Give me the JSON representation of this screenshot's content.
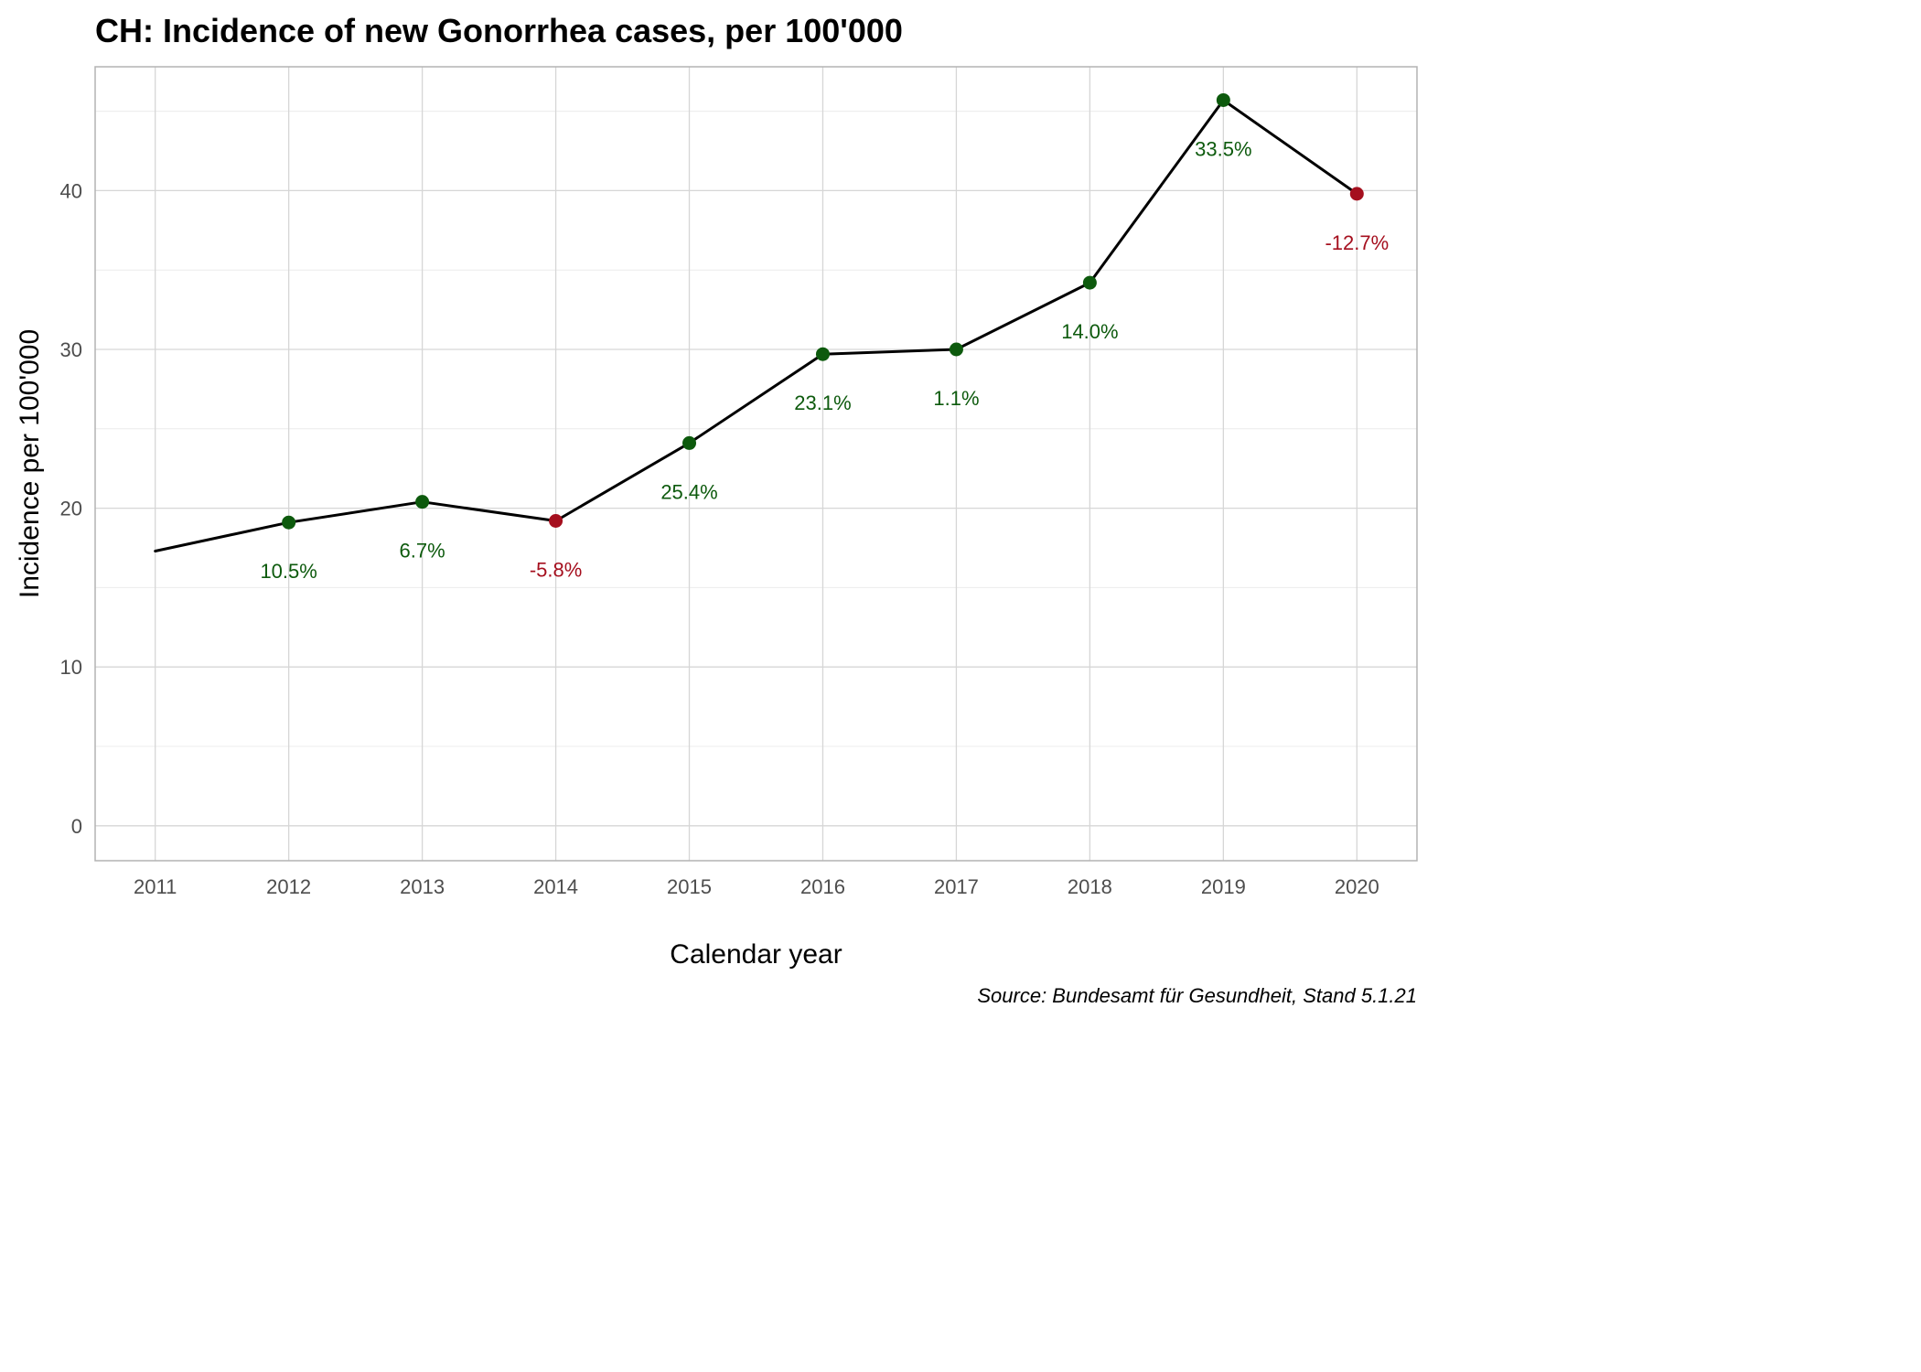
{
  "chart_data": {
    "type": "line",
    "title": "CH: Incidence of new Gonorrhea cases, per 100'000",
    "xlabel": "Calendar year",
    "ylabel": "Incidence per 100'000",
    "caption": "Source: Bundesamt für Gesundheit, Stand 5.1.21",
    "x": [
      2011,
      2012,
      2013,
      2014,
      2015,
      2016,
      2017,
      2018,
      2019,
      2020
    ],
    "x_tick_labels": [
      "2011",
      "2012",
      "2013",
      "2014",
      "2015",
      "2016",
      "2017",
      "2018",
      "2019",
      "2020"
    ],
    "y_ticks": [
      0,
      10,
      20,
      30,
      40
    ],
    "y_tick_labels": [
      "0",
      "10",
      "20",
      "30",
      "40"
    ],
    "xlim": [
      2010.55,
      2020.45
    ],
    "ylim": [
      -2.2,
      47.8
    ],
    "grid": true,
    "series": [
      {
        "values": [
          17.3,
          19.1,
          20.4,
          19.2,
          24.1,
          29.7,
          30.0,
          34.2,
          45.7,
          39.8
        ],
        "change_labels": [
          null,
          "10.5%",
          "6.7%",
          "-5.8%",
          "25.4%",
          "23.1%",
          "1.1%",
          "14.0%",
          "33.5%",
          "-12.7%"
        ],
        "change_direction": [
          null,
          "up",
          "up",
          "down",
          "up",
          "up",
          "up",
          "up",
          "up",
          "down"
        ]
      }
    ],
    "colors": {
      "increase": "#0d5a0d",
      "decrease": "#a50f1e",
      "line": "#000000"
    }
  }
}
